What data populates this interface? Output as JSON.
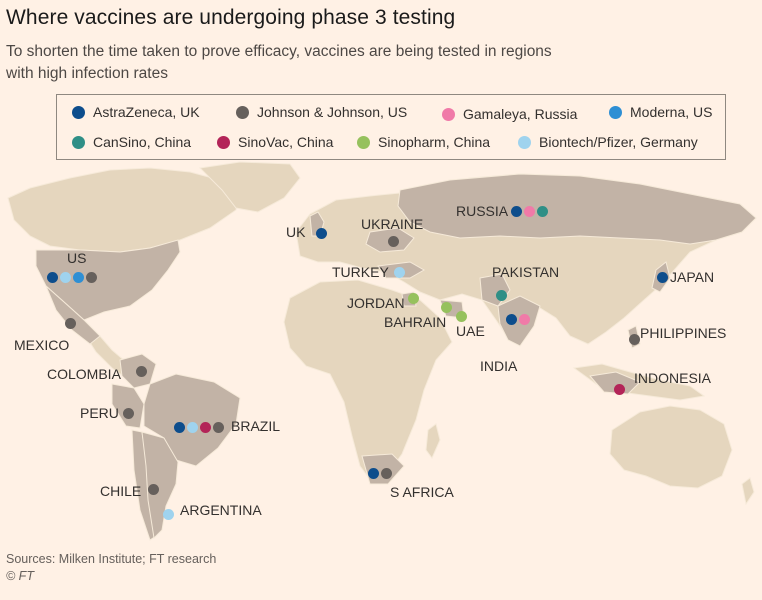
{
  "title": "Where vaccines are undergoing phase 3 testing",
  "subtitle": "To shorten the time taken to prove efficacy, vaccines are being tested in regions with high infection rates",
  "legend": [
    {
      "name": "AstraZeneca, UK",
      "color": "#0d4d8c"
    },
    {
      "name": "Johnson & Johnson, US",
      "color": "#66605c"
    },
    {
      "name": "Gamaleya, Russia",
      "color": "#f07aa8"
    },
    {
      "name": "Moderna, US",
      "color": "#2e8fd4"
    },
    {
      "name": "CanSino, China",
      "color": "#2f8f86"
    },
    {
      "name": "SinoVac, China",
      "color": "#b32458"
    },
    {
      "name": "Sinopharm, China",
      "color": "#96c15d"
    },
    {
      "name": "Biontech/Pfizer, Germany",
      "color": "#9fd3ee"
    }
  ],
  "countries": [
    {
      "name": "UK",
      "vaccines": [
        "AstraZeneca, UK"
      ]
    },
    {
      "name": "UKRAINE",
      "vaccines": [
        "Johnson & Johnson, US"
      ]
    },
    {
      "name": "RUSSIA",
      "vaccines": [
        "AstraZeneca, UK",
        "Gamaleya, Russia",
        "CanSino, China"
      ]
    },
    {
      "name": "US",
      "vaccines": [
        "AstraZeneca, UK",
        "Biontech/Pfizer, Germany",
        "Moderna, US",
        "Johnson & Johnson, US"
      ]
    },
    {
      "name": "TURKEY",
      "vaccines": [
        "Biontech/Pfizer, Germany"
      ]
    },
    {
      "name": "PAKISTAN",
      "vaccines": [
        "CanSino, China"
      ]
    },
    {
      "name": "JAPAN",
      "vaccines": [
        "AstraZeneca, UK"
      ]
    },
    {
      "name": "JORDAN",
      "vaccines": [
        "Sinopharm, China"
      ]
    },
    {
      "name": "BAHRAIN",
      "vaccines": [
        "Sinopharm, China"
      ]
    },
    {
      "name": "UAE",
      "vaccines": [
        "Sinopharm, China"
      ]
    },
    {
      "name": "INDIA",
      "vaccines": [
        "AstraZeneca, UK",
        "Gamaleya, Russia"
      ]
    },
    {
      "name": "MEXICO",
      "vaccines": [
        "Johnson & Johnson, US"
      ]
    },
    {
      "name": "PHILIPPINES",
      "vaccines": [
        "Johnson & Johnson, US"
      ]
    },
    {
      "name": "COLOMBIA",
      "vaccines": [
        "Johnson & Johnson, US"
      ]
    },
    {
      "name": "INDONESIA",
      "vaccines": [
        "SinoVac, China"
      ]
    },
    {
      "name": "PERU",
      "vaccines": [
        "Johnson & Johnson, US"
      ]
    },
    {
      "name": "BRAZIL",
      "vaccines": [
        "AstraZeneca, UK",
        "Biontech/Pfizer, Germany",
        "SinoVac, China",
        "Johnson & Johnson, US"
      ]
    },
    {
      "name": "S AFRICA",
      "vaccines": [
        "AstraZeneca, UK",
        "Johnson & Johnson, US"
      ]
    },
    {
      "name": "CHILE",
      "vaccines": [
        "Johnson & Johnson, US"
      ]
    },
    {
      "name": "ARGENTINA",
      "vaccines": [
        "Biontech/Pfizer, Germany"
      ]
    }
  ],
  "colors": {
    "background": "#fff1e5",
    "land": "#e5d6be",
    "highlighted_land": "#c2b3a6",
    "map_water": "#fff1e5"
  },
  "source": "Sources: Milken Institute; FT research",
  "credit": "© FT"
}
